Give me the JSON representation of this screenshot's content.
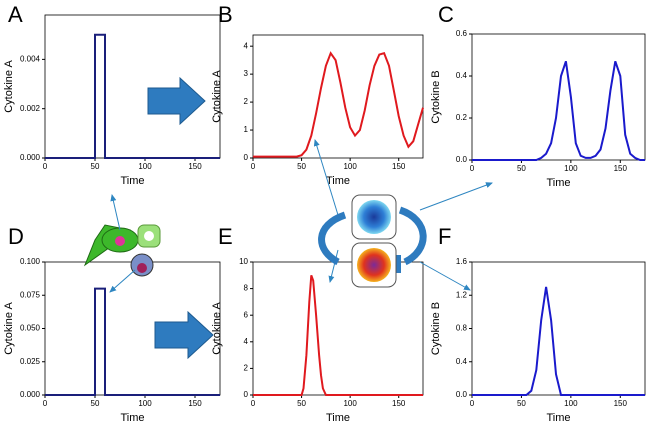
{
  "chart_data": [
    {
      "type": "line",
      "label": "A",
      "ylabel": "Cytokine A",
      "xlabel": "Time",
      "color": "#1a1f7a",
      "x": [
        0,
        50,
        50,
        60,
        60,
        175
      ],
      "values": [
        0,
        0,
        0.005,
        0.005,
        0,
        0
      ],
      "xlim": [
        0,
        175
      ],
      "xticks": [
        0,
        50,
        100,
        150
      ],
      "ylim": [
        0,
        0.0058
      ],
      "yticks": [
        {
          "value": 0,
          "label": "0.000"
        },
        {
          "value": 0.002,
          "label": "0.002"
        },
        {
          "value": 0.004,
          "label": "0.004"
        }
      ]
    },
    {
      "type": "line",
      "label": "B",
      "ylabel": "Cytokine A",
      "xlabel": "Time",
      "color": "#e0191e",
      "x": [
        0,
        5,
        10,
        15,
        20,
        25,
        30,
        35,
        40,
        45,
        50,
        55,
        60,
        65,
        70,
        75,
        80,
        85,
        90,
        95,
        100,
        105,
        110,
        115,
        120,
        125,
        130,
        135,
        140,
        145,
        150,
        155,
        160,
        165,
        170,
        175
      ],
      "values": [
        0.05,
        0.05,
        0.05,
        0.05,
        0.05,
        0.05,
        0.05,
        0.05,
        0.05,
        0.05,
        0.1,
        0.3,
        0.8,
        1.6,
        2.5,
        3.3,
        3.75,
        3.5,
        2.7,
        1.8,
        1.1,
        0.8,
        1.0,
        1.7,
        2.6,
        3.3,
        3.7,
        3.75,
        3.3,
        2.4,
        1.5,
        0.8,
        0.4,
        0.6,
        1.2,
        1.8
      ],
      "xlim": [
        0,
        175
      ],
      "xticks": [
        0,
        50,
        100,
        150
      ],
      "ylim": [
        0,
        4.4
      ],
      "yticks": [
        0,
        1,
        2,
        3,
        4
      ]
    },
    {
      "type": "line",
      "label": "C",
      "ylabel": "Cytokine B",
      "xlabel": "Time",
      "color": "#1a1acc",
      "x": [
        0,
        5,
        10,
        15,
        20,
        25,
        30,
        35,
        40,
        45,
        50,
        55,
        60,
        65,
        70,
        75,
        80,
        85,
        90,
        95,
        100,
        105,
        110,
        115,
        120,
        125,
        130,
        135,
        140,
        145,
        150,
        155,
        160,
        165,
        170,
        175
      ],
      "values": [
        0,
        0,
        0,
        0,
        0,
        0,
        0,
        0,
        0,
        0,
        0,
        0,
        0,
        0,
        0.01,
        0.03,
        0.08,
        0.2,
        0.4,
        0.47,
        0.3,
        0.08,
        0.02,
        0.01,
        0.01,
        0.02,
        0.05,
        0.15,
        0.33,
        0.47,
        0.4,
        0.12,
        0.03,
        0.01,
        0,
        0
      ],
      "xlim": [
        0,
        175
      ],
      "xticks": [
        0,
        50,
        100,
        150
      ],
      "ylim": [
        0,
        0.6
      ],
      "yticks": [
        {
          "value": 0,
          "label": "0.0"
        },
        {
          "value": 0.2,
          "label": "0.2"
        },
        {
          "value": 0.4,
          "label": "0.4"
        },
        {
          "value": 0.6,
          "label": "0.6"
        }
      ]
    },
    {
      "type": "line",
      "label": "D",
      "ylabel": "Cytokine A",
      "xlabel": "Time",
      "color": "#1a1f7a",
      "x": [
        0,
        50,
        50,
        60,
        60,
        175
      ],
      "values": [
        0,
        0,
        0.08,
        0.08,
        0,
        0
      ],
      "xlim": [
        0,
        175
      ],
      "xticks": [
        0,
        50,
        100,
        150
      ],
      "ylim": [
        0,
        0.1
      ],
      "yticks": [
        {
          "value": 0,
          "label": "0.000"
        },
        {
          "value": 0.025,
          "label": "0.025"
        },
        {
          "value": 0.05,
          "label": "0.050"
        },
        {
          "value": 0.075,
          "label": "0.075"
        },
        {
          "value": 0.1,
          "label": "0.100"
        }
      ]
    },
    {
      "type": "line",
      "label": "E",
      "ylabel": "Cytokine A",
      "xlabel": "Time",
      "color": "#e0191e",
      "x": [
        0,
        50,
        52,
        55,
        58,
        60,
        62,
        65,
        68,
        70,
        72,
        75,
        175
      ],
      "values": [
        0,
        0,
        0.5,
        3,
        7,
        9,
        8.6,
        6,
        3,
        1.5,
        0.5,
        0,
        0
      ],
      "xlim": [
        0,
        175
      ],
      "xticks": [
        0,
        50,
        100,
        150
      ],
      "ylim": [
        0,
        10
      ],
      "yticks": [
        0,
        2,
        4,
        6,
        8,
        10
      ]
    },
    {
      "type": "line",
      "label": "F",
      "ylabel": "Cytokine B",
      "xlabel": "Time",
      "color": "#1a1acc",
      "x": [
        0,
        55,
        60,
        65,
        70,
        75,
        80,
        85,
        90,
        175
      ],
      "values": [
        0,
        0,
        0.05,
        0.3,
        0.9,
        1.3,
        0.9,
        0.25,
        0,
        0
      ],
      "xlim": [
        0,
        175
      ],
      "xticks": [
        0,
        50,
        100,
        150
      ],
      "ylim": [
        0,
        1.6
      ],
      "yticks": [
        {
          "value": 0,
          "label": "0.0"
        },
        {
          "value": 0.4,
          "label": "0.4"
        },
        {
          "value": 0.8,
          "label": "0.8"
        },
        {
          "value": 1.2,
          "label": "1.2"
        },
        {
          "value": 1.6,
          "label": "1.6"
        }
      ]
    }
  ]
}
